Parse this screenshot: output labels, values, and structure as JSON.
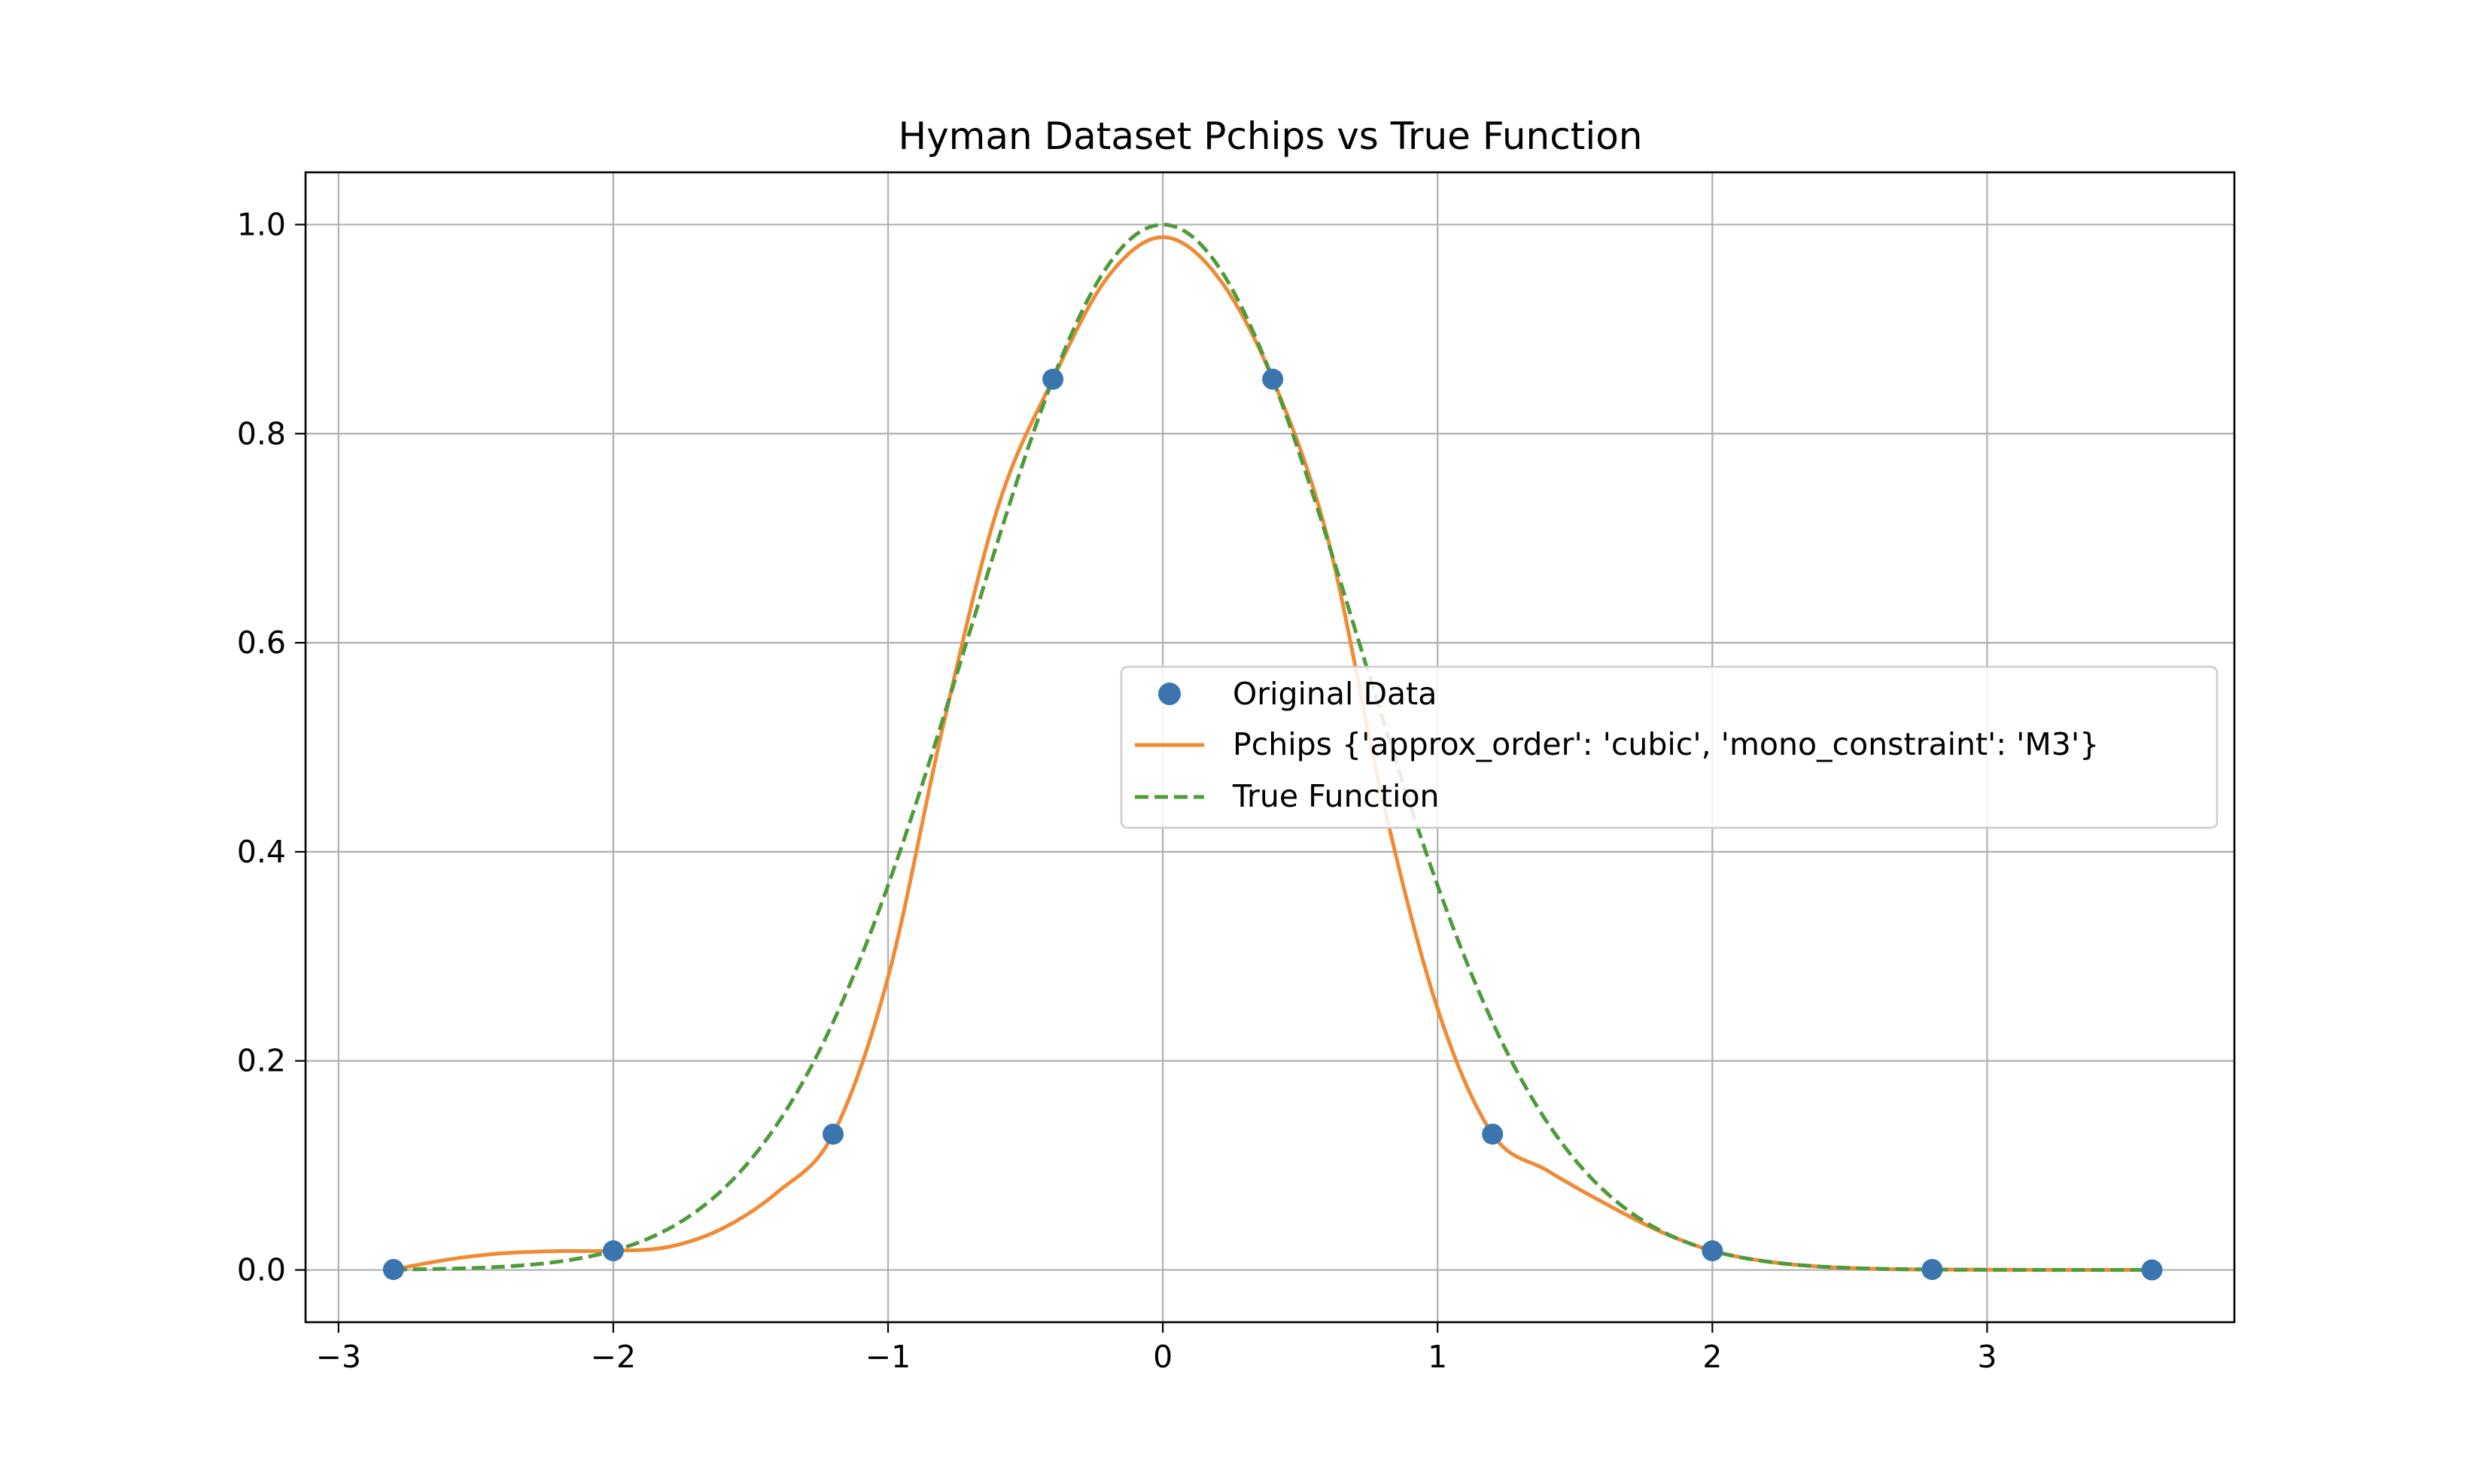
{
  "chart_data": {
    "type": "line",
    "title": "Hyman Dataset Pchips vs True Function",
    "xlabel": "",
    "ylabel": "",
    "xlim": [
      -3.12,
      3.9
    ],
    "ylim": [
      -0.05,
      1.05
    ],
    "grid": true,
    "legend_position": "center-right",
    "x_ticks": [
      -3,
      -2,
      -1,
      0,
      1,
      2,
      3
    ],
    "x_tick_labels": [
      "−3",
      "−2",
      "−1",
      "0",
      "1",
      "2",
      "3"
    ],
    "y_ticks": [
      0.0,
      0.2,
      0.4,
      0.6,
      0.8,
      1.0
    ],
    "y_tick_labels": [
      "0.0",
      "0.2",
      "0.4",
      "0.6",
      "0.8",
      "1.0"
    ],
    "series": [
      {
        "name": "Original Data",
        "kind": "scatter",
        "color": "#3a75b0",
        "x": [
          -2.8,
          -2.0,
          -1.2,
          -0.4,
          0.4,
          1.2,
          2.0,
          2.8,
          3.6
        ],
        "y": [
          0.0004,
          0.0183,
          0.1299,
          0.8521,
          0.8521,
          0.1299,
          0.0183,
          0.0004,
          0.0
        ]
      },
      {
        "name": "Pchips {'approx_order': 'cubic', 'mono_constraint': 'M3'}",
        "kind": "line",
        "style": "solid",
        "color": "#f08a35",
        "x": [
          -2.8,
          -2.6,
          -2.4,
          -2.2,
          -2.0,
          -1.8,
          -1.6,
          -1.4,
          -1.2,
          -1.0,
          -0.8,
          -0.6,
          -0.4,
          -0.2,
          0.0,
          0.2,
          0.4,
          0.6,
          0.8,
          1.0,
          1.2,
          1.4,
          1.6,
          1.8,
          2.0,
          2.2,
          2.4,
          2.6,
          2.8,
          3.0,
          3.2,
          3.4,
          3.6
        ],
        "y": [
          0.0004,
          0.01,
          0.016,
          0.018,
          0.0183,
          0.022,
          0.04,
          0.075,
          0.1299,
          0.28,
          0.52,
          0.73,
          0.8521,
          0.95,
          0.988,
          0.95,
          0.8521,
          0.7,
          0.45,
          0.25,
          0.1299,
          0.095,
          0.065,
          0.038,
          0.0183,
          0.008,
          0.003,
          0.001,
          0.0004,
          0.0002,
          0.0001,
          0.0,
          0.0
        ]
      },
      {
        "name": "True Function",
        "kind": "line",
        "style": "dashed",
        "color": "#4d9b3a",
        "function": "exp(-x^2)",
        "x_range": [
          -2.8,
          3.6
        ]
      }
    ]
  }
}
